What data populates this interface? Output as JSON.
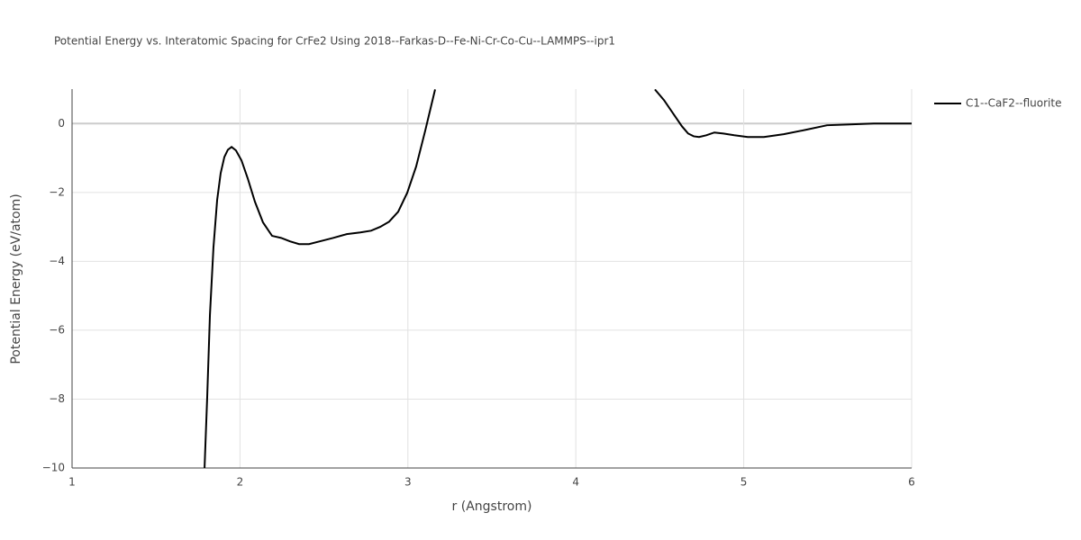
{
  "chart_data": {
    "type": "line",
    "title": "Potential Energy vs. Interatomic Spacing for CrFe2 Using 2018--Farkas-D--Fe-Ni-Cr-Co-Cu--LAMMPS--ipr1",
    "x_label": "r (Angstrom)",
    "y_label": "Potential Energy (eV/atom)",
    "xlim": [
      1,
      6
    ],
    "ylim": [
      -10,
      1
    ],
    "xticks": [
      1,
      2,
      3,
      4,
      5,
      6
    ],
    "yticks": [
      {
        "value": -10,
        "label": "−10"
      },
      {
        "value": -8,
        "label": "−8"
      },
      {
        "value": -6,
        "label": "−6"
      },
      {
        "value": -4,
        "label": "−4"
      },
      {
        "value": -2,
        "label": "−2"
      },
      0
    ],
    "grid": true,
    "legend": "right",
    "x": [
      1.789,
      1.805,
      1.821,
      1.842,
      1.864,
      1.885,
      1.907,
      1.928,
      1.95,
      1.976,
      2.009,
      2.046,
      2.089,
      2.137,
      2.191,
      2.245,
      2.298,
      2.352,
      2.411,
      2.475,
      2.556,
      2.636,
      2.717,
      2.781,
      2.835,
      2.888,
      2.942,
      2.996,
      3.049,
      3.103,
      3.162,
      3.8,
      4.471,
      4.525,
      4.584,
      4.632,
      4.669,
      4.702,
      4.734,
      4.777,
      4.825,
      4.879,
      4.943,
      5.024,
      5.12,
      5.238,
      5.372,
      5.496,
      5.614,
      5.775,
      6.0
    ],
    "series": [
      {
        "name": "C1--CaF2--fluorite",
        "color": "#000000",
        "values": [
          -10,
          -7.91,
          -5.56,
          -3.6,
          -2.22,
          -1.44,
          -0.97,
          -0.76,
          -0.68,
          -0.78,
          -1.07,
          -1.59,
          -2.27,
          -2.87,
          -3.26,
          -3.32,
          -3.42,
          -3.5,
          -3.5,
          -3.42,
          -3.32,
          -3.21,
          -3.16,
          -3.11,
          -3.0,
          -2.85,
          -2.56,
          -2.01,
          -1.25,
          -0.21,
          0.99,
          null,
          0.99,
          0.68,
          0.26,
          -0.08,
          -0.29,
          -0.37,
          -0.39,
          -0.34,
          -0.26,
          -0.29,
          -0.34,
          -0.39,
          -0.39,
          -0.31,
          -0.18,
          -0.05,
          -0.03,
          0,
          0
        ]
      }
    ]
  }
}
